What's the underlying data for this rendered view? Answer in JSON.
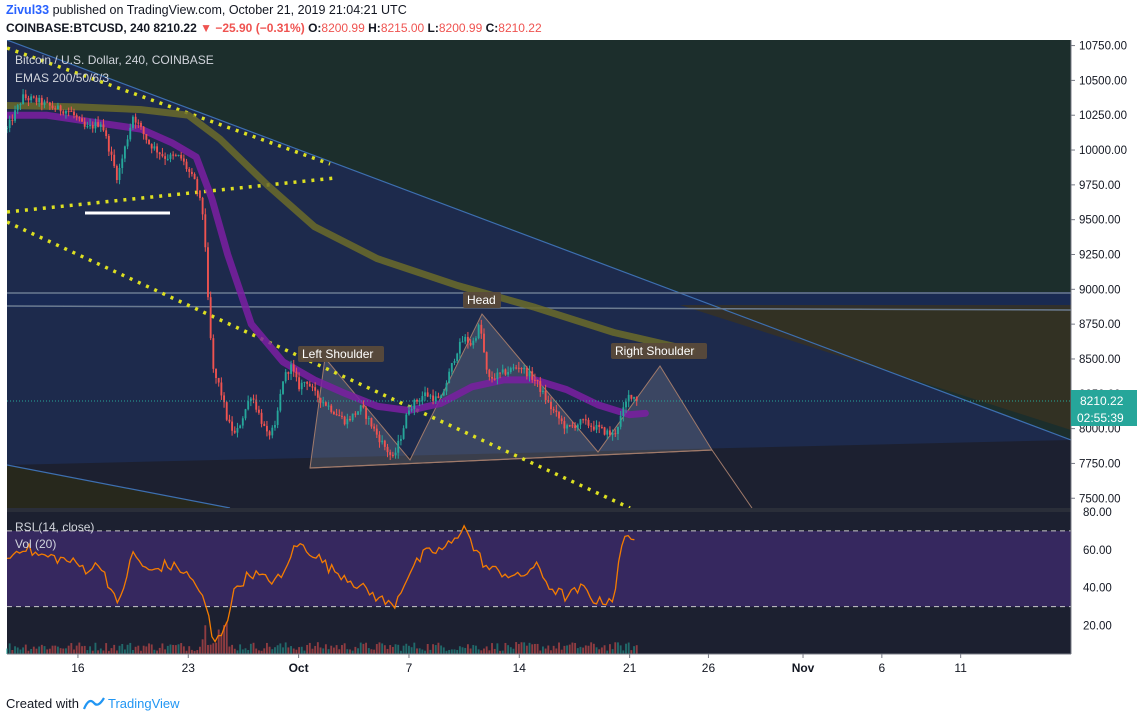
{
  "header": {
    "author": "Zivul33",
    "published_text": "published on TradingView.com, October 21, 2019 21:04:21 UTC",
    "symbol": "COINBASE:BTCUSD, 240",
    "last": "8210.22",
    "change": "▼ −25.90 (−0.31%)",
    "open_label": "O:",
    "open": "8200.99",
    "high_label": "H:",
    "high": "8215.00",
    "low_label": "L:",
    "low": "8200.99",
    "close_label": "C:",
    "close": "8210.22"
  },
  "legend": {
    "title": "Bitcoin / U.S. Dollar, 240, COINBASE",
    "indicator": "EMAS 200/50/6/3",
    "rsi": "RSI (14, close)",
    "vol": "Vol (20)"
  },
  "price_tag": {
    "value": "8210.22",
    "countdown": "02:55:39"
  },
  "annotations": [
    "Left Shoulder",
    "Head",
    "Right Shoulder"
  ],
  "footer": {
    "created_with": "Created with",
    "brand": "TradingView"
  },
  "colors": {
    "up": "#26a69a",
    "down": "#ef5350",
    "ema_fast": "#7b1fa2",
    "ema_slow": "#6b6b2a",
    "dotted": "#dde021",
    "rsi": "#f57c00",
    "rsi_bg": "#3d2a6b",
    "trend": "#3d6fb0"
  },
  "chart_data": {
    "type": "line",
    "price_axis": {
      "ticks": [
        "10750.00",
        "10500.00",
        "10250.00",
        "10000.00",
        "9750.00",
        "9500.00",
        "9250.00",
        "9000.00",
        "8750.00",
        "8500.00",
        "8250.00",
        "8000.00",
        "7750.00",
        "7500.00"
      ],
      "range": [
        7430,
        10790
      ]
    },
    "rsi_axis": {
      "ticks": [
        "80.00",
        "60.00",
        "40.00",
        "20.00"
      ],
      "range": [
        5,
        80
      ],
      "bands": [
        70,
        30
      ]
    },
    "x_axis": {
      "labels": [
        {
          "label": "16",
          "day": 16
        },
        {
          "label": "23",
          "day": 23
        },
        {
          "label": "Oct",
          "day": 30
        },
        {
          "label": "7",
          "day": 37
        },
        {
          "label": "14",
          "day": 44
        },
        {
          "label": "21",
          "day": 51
        },
        {
          "label": "26",
          "day": 56
        },
        {
          "label": "Nov",
          "day": 62
        },
        {
          "label": "6",
          "day": 67
        },
        {
          "label": "11",
          "day": 72
        }
      ],
      "range_days": [
        11.5,
        79
      ],
      "note": "day index counted from Sep 1, 2019 (Oct 1 = 30)"
    },
    "price_series": {
      "name": "BTCUSD",
      "x": [
        11.5,
        12.5,
        13.5,
        14.5,
        15.5,
        16.5,
        17.5,
        18.5,
        19.5,
        20.5,
        21.5,
        22.5,
        23.5,
        24.0,
        24.3,
        24.6,
        25.0,
        25.5,
        26.0,
        26.5,
        27.0,
        27.5,
        28.0,
        28.5,
        29.0,
        29.5,
        30.0,
        30.5,
        31.0,
        32.0,
        33.0,
        34.0,
        35.0,
        36.0,
        36.5,
        37.0,
        38.0,
        39.0,
        40.0,
        40.5,
        41.0,
        41.5,
        42.0,
        43.0,
        44.0,
        45.0,
        46.0,
        47.0,
        48.0,
        49.0,
        50.0,
        50.5,
        51.0,
        51.5
      ],
      "y": [
        10150,
        10380,
        10350,
        10300,
        10280,
        10150,
        10200,
        9800,
        10250,
        10050,
        9950,
        9950,
        9750,
        9500,
        8800,
        8400,
        8300,
        8050,
        7950,
        8100,
        8250,
        8100,
        7950,
        8000,
        8350,
        8450,
        8300,
        8350,
        8250,
        8150,
        8050,
        8150,
        7950,
        7780,
        7950,
        8150,
        8250,
        8200,
        8550,
        8650,
        8600,
        8750,
        8350,
        8400,
        8450,
        8350,
        8150,
        8000,
        8050,
        8000,
        7950,
        8100,
        8250,
        8210
      ]
    },
    "ema_fast": {
      "x": [
        11.5,
        14,
        17,
        20,
        22,
        23.5,
        24.5,
        25.5,
        27,
        29,
        31,
        33,
        35,
        37,
        39,
        41,
        43,
        45,
        47,
        49,
        51,
        52
      ],
      "y": [
        10250,
        10250,
        10200,
        10150,
        10050,
        9950,
        9650,
        9250,
        8750,
        8480,
        8350,
        8250,
        8160,
        8130,
        8180,
        8300,
        8350,
        8350,
        8280,
        8170,
        8100,
        8110
      ]
    },
    "ema_slow": {
      "x": [
        11.5,
        16,
        20,
        23,
        25,
        28,
        31,
        35,
        40,
        45,
        50,
        55
      ],
      "y": [
        10320,
        10310,
        10290,
        10250,
        10080,
        9750,
        9450,
        9220,
        9030,
        8870,
        8690,
        8560
      ]
    },
    "rsi_series": {
      "name": "RSI",
      "x": [
        11.5,
        12.5,
        13.5,
        14.5,
        15.5,
        16.5,
        17.5,
        18.5,
        19.5,
        20.5,
        21.5,
        22.5,
        23.5,
        24.2,
        24.6,
        25.0,
        25.5,
        26.0,
        27.0,
        28.0,
        29.0,
        29.5,
        30.0,
        31.0,
        32.0,
        33.0,
        34.0,
        35.0,
        36.0,
        37.0,
        38.0,
        39.0,
        40.0,
        40.5,
        41.0,
        42.0,
        43.0,
        44.0,
        45.0,
        46.0,
        47.0,
        48.0,
        49.0,
        50.0,
        50.5,
        51.0,
        51.5
      ],
      "y": [
        55,
        62,
        57,
        56,
        54,
        50,
        52,
        30,
        58,
        48,
        52,
        50,
        42,
        28,
        10,
        14,
        25,
        40,
        48,
        44,
        45,
        58,
        63,
        58,
        50,
        46,
        40,
        35,
        30,
        48,
        58,
        60,
        65,
        75,
        62,
        50,
        48,
        45,
        52,
        40,
        35,
        40,
        32,
        35,
        62,
        70,
        62
      ]
    }
  }
}
